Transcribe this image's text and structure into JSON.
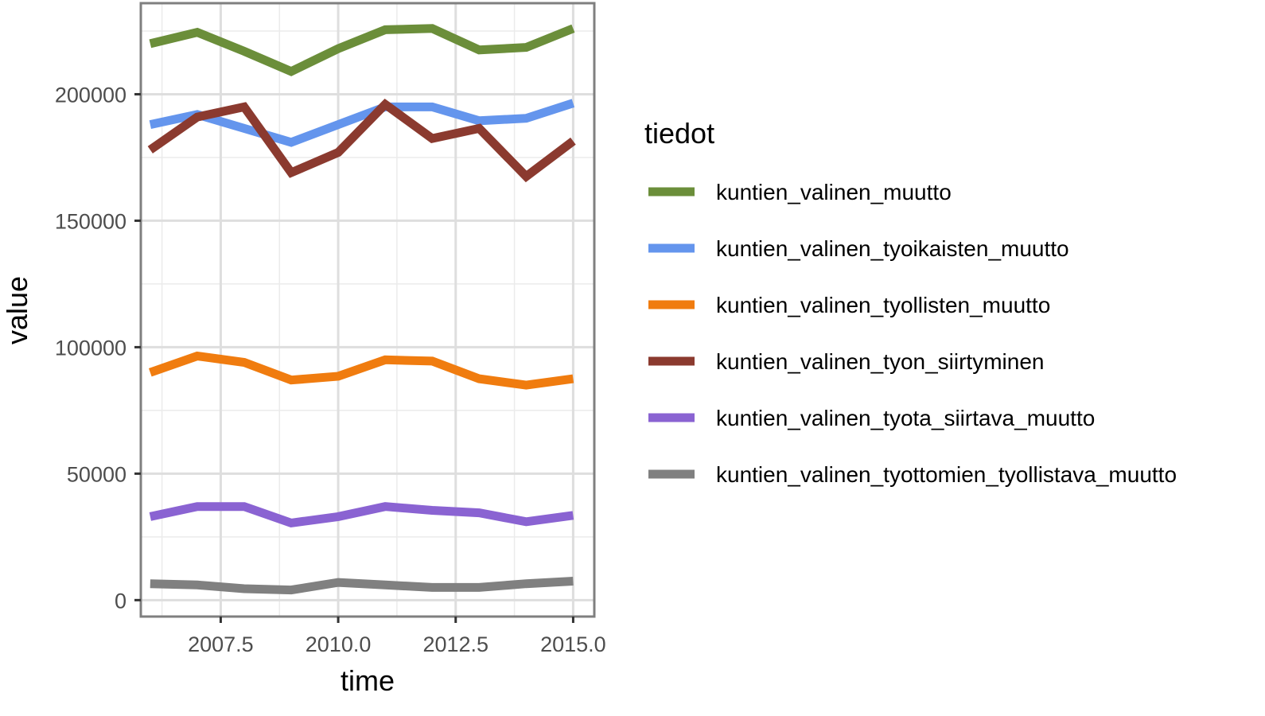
{
  "chart_data": {
    "type": "line",
    "xlabel": "time",
    "ylabel": "value",
    "xlim": [
      2005.8,
      2015.45
    ],
    "ylim": [
      -6500,
      236000
    ],
    "x_ticks": [
      2007.5,
      2010.0,
      2012.5,
      2015.0
    ],
    "x_tick_labels": [
      "2007.5",
      "2010.0",
      "2012.5",
      "2015.0"
    ],
    "y_ticks": [
      0,
      50000,
      100000,
      150000,
      200000
    ],
    "y_tick_labels": [
      "0",
      "50000",
      "100000",
      "150000",
      "200000"
    ],
    "grid": true,
    "legend_position": "right",
    "legend_title": "tiedot",
    "x": [
      2006,
      2007,
      2008,
      2009,
      2010,
      2011,
      2012,
      2013,
      2014,
      2015
    ],
    "series": [
      {
        "name": "kuntien_valinen_muutto",
        "color": "#6b8e3a",
        "values": [
          220000,
          224500,
          217000,
          209000,
          218000,
          225500,
          226000,
          217500,
          218500,
          226000
        ]
      },
      {
        "name": "kuntien_valinen_tyoikaisten_muutto",
        "color": "#6495ed",
        "values": [
          188000,
          192000,
          186500,
          181000,
          188000,
          195000,
          195000,
          189500,
          190500,
          196500
        ]
      },
      {
        "name": "kuntien_valinen_tyollisten_muutto",
        "color": "#f07c0f",
        "values": [
          90000,
          96500,
          94000,
          87000,
          88500,
          95000,
          94500,
          87500,
          85000,
          87500
        ]
      },
      {
        "name": "kuntien_valinen_tyon_siirtyminen",
        "color": "#8b3a2f",
        "values": [
          178000,
          191000,
          195000,
          169000,
          177000,
          196000,
          182500,
          186500,
          167500,
          181500
        ]
      },
      {
        "name": "kuntien_valinen_tyota_siirtava_muutto",
        "color": "#8a63d2",
        "values": [
          33000,
          37000,
          37000,
          30500,
          33000,
          37000,
          35500,
          34500,
          31000,
          33500
        ]
      },
      {
        "name": "kuntien_valinen_tyottomien_tyollistava_muutto",
        "color": "#808080",
        "values": [
          6500,
          6000,
          4500,
          4000,
          7000,
          6000,
          5000,
          5000,
          6500,
          7500
        ]
      }
    ]
  }
}
